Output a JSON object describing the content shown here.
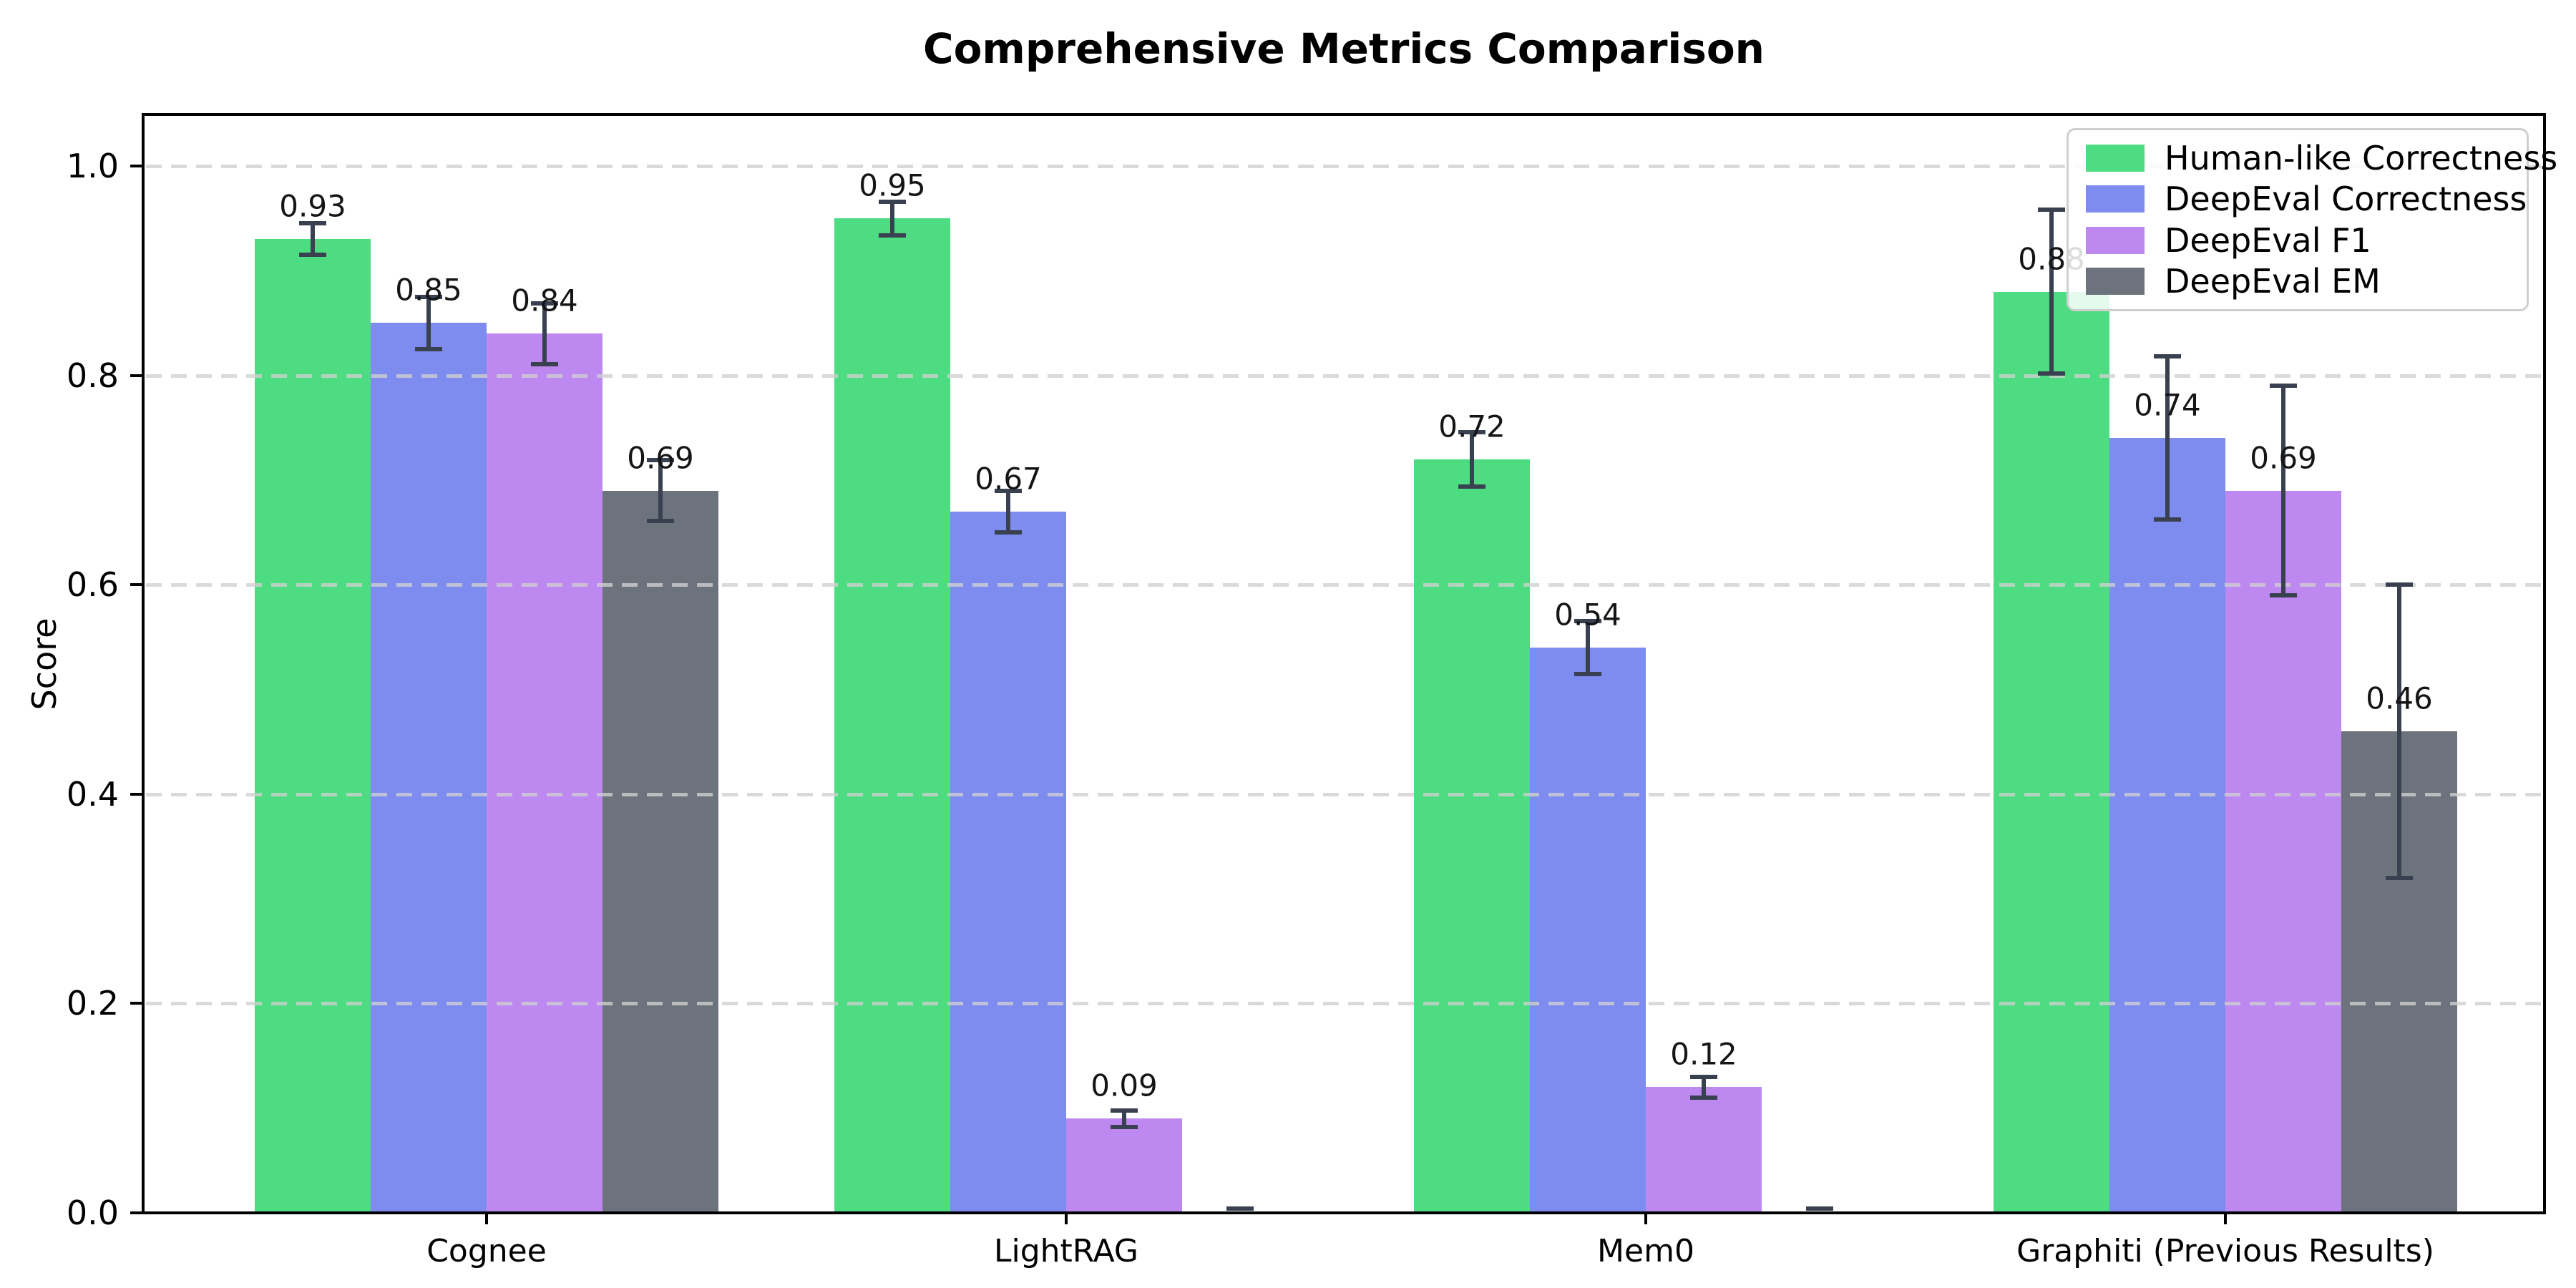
{
  "figure": {
    "title": "Comprehensive Metrics Comparison",
    "ylabel": "Score"
  },
  "colors": {
    "human_like_correctness": "#4EDC82",
    "deepeval_correctness": "#7E8CF0",
    "deepeval_f1": "#BD88F0",
    "deepeval_em": "#6C737C",
    "error_bar": "#394150",
    "grid": "#D3D3D3",
    "axis": "#000000",
    "legend_border": "#CFCFCF"
  },
  "chart_data": {
    "type": "bar",
    "title": "Comprehensive Metrics Comparison",
    "xlabel": "",
    "ylabel": "Score",
    "ylim": [
      0,
      1.05
    ],
    "yticks": [
      "0.0",
      "0.2",
      "0.4",
      "0.6",
      "0.8",
      "1.0"
    ],
    "grid": "horizontal dashed, drawn over bars",
    "legend_position": "upper right",
    "error_bars": true,
    "categories": [
      "Cognee",
      "LightRAG",
      "Mem0",
      "Graphiti (Previous Results)"
    ],
    "series": [
      {
        "name": "Human-like Correctness",
        "color": "#4EDC82",
        "values": [
          0.93,
          0.95,
          0.72,
          0.88
        ],
        "errors": [
          0.015,
          0.016,
          0.026,
          0.078
        ],
        "bar_labels": [
          "0.93",
          "0.95",
          "0.72",
          "0.88"
        ]
      },
      {
        "name": "DeepEval Correctness",
        "color": "#7E8CF0",
        "values": [
          0.85,
          0.67,
          0.54,
          0.74
        ],
        "errors": [
          0.025,
          0.02,
          0.025,
          0.078
        ],
        "bar_labels": [
          "0.85",
          "0.67",
          "0.54",
          "0.74"
        ]
      },
      {
        "name": "DeepEval F1",
        "color": "#BD88F0",
        "values": [
          0.84,
          0.09,
          0.12,
          0.69
        ],
        "errors": [
          0.029,
          0.008,
          0.01,
          0.1
        ],
        "bar_labels": [
          "0.84",
          "0.09",
          "0.12",
          "0.69"
        ]
      },
      {
        "name": "DeepEval EM",
        "color": "#6C737C",
        "values": [
          0.69,
          0.0,
          0.0,
          0.46
        ],
        "errors": [
          0.029,
          0.004,
          0.004,
          0.14
        ],
        "bar_labels": [
          "0.69",
          null,
          null,
          "0.46"
        ]
      }
    ]
  }
}
